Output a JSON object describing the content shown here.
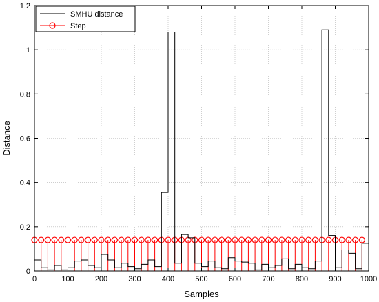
{
  "chart_data": {
    "type": "line",
    "xlabel": "Samples",
    "ylabel": "Distance",
    "xlim": [
      0,
      1000
    ],
    "ylim": [
      0,
      1.2
    ],
    "xticks": [
      "0",
      "100",
      "200",
      "300",
      "400",
      "500",
      "600",
      "700",
      "800",
      "900",
      "1000"
    ],
    "yticks": [
      "0",
      "0.2",
      "0.4",
      "0.6",
      "0.8",
      "1",
      "1.2"
    ],
    "grid": true,
    "legend_position": "top-left",
    "colors": {
      "smhu": "#000000",
      "step": "#ff0000"
    },
    "series": [
      {
        "name": "SMHU distance",
        "style": "stairs",
        "step_width": 20,
        "x": [
          0,
          20,
          40,
          60,
          80,
          100,
          120,
          140,
          160,
          180,
          200,
          220,
          240,
          260,
          280,
          300,
          320,
          340,
          360,
          380,
          400,
          420,
          440,
          460,
          480,
          500,
          520,
          540,
          560,
          580,
          600,
          620,
          640,
          660,
          680,
          700,
          720,
          740,
          760,
          780,
          800,
          820,
          840,
          860,
          880,
          900,
          920,
          940,
          960,
          980
        ],
        "values": [
          0.05,
          0.015,
          0.005,
          0.025,
          0.005,
          0.015,
          0.045,
          0.05,
          0.025,
          0.015,
          0.075,
          0.05,
          0.015,
          0.035,
          0.02,
          0.01,
          0.03,
          0.05,
          0.02,
          0.355,
          1.08,
          0.035,
          0.165,
          0.15,
          0.035,
          0.02,
          0.045,
          0.015,
          0.01,
          0.06,
          0.045,
          0.04,
          0.035,
          0.005,
          0.03,
          0.015,
          0.025,
          0.055,
          0.01,
          0.03,
          0.015,
          0.01,
          0.045,
          1.09,
          0.16,
          0.015,
          0.095,
          0.08,
          0.01,
          0.125
        ]
      },
      {
        "name": "Step",
        "style": "stem",
        "x": [
          0,
          20,
          40,
          60,
          80,
          100,
          120,
          140,
          160,
          180,
          200,
          220,
          240,
          260,
          280,
          300,
          320,
          340,
          360,
          380,
          400,
          420,
          440,
          460,
          480,
          500,
          520,
          540,
          560,
          580,
          600,
          620,
          640,
          660,
          680,
          700,
          720,
          740,
          760,
          780,
          800,
          820,
          840,
          860,
          880,
          900,
          920,
          940,
          960,
          980
        ],
        "values": [
          0.14,
          0.14,
          0.14,
          0.14,
          0.14,
          0.14,
          0.14,
          0.14,
          0.14,
          0.14,
          0.14,
          0.14,
          0.14,
          0.14,
          0.14,
          0.14,
          0.14,
          0.14,
          0.14,
          0.14,
          0.14,
          0.14,
          0.14,
          0.14,
          0.14,
          0.14,
          0.14,
          0.14,
          0.14,
          0.14,
          0.14,
          0.14,
          0.14,
          0.14,
          0.14,
          0.14,
          0.14,
          0.14,
          0.14,
          0.14,
          0.14,
          0.14,
          0.14,
          0.14,
          0.14,
          0.14,
          0.14,
          0.14,
          0.14,
          0.14
        ]
      }
    ]
  }
}
